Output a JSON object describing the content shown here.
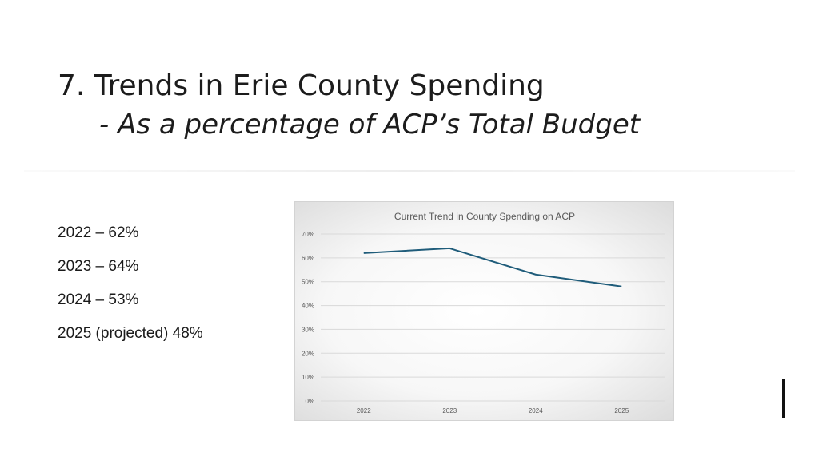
{
  "slide": {
    "title": "7. Trends in Erie County Spending",
    "subtitle": "- As a percentage of ACP’s Total Budget",
    "items": [
      "2022 – 62%",
      "2023 – 64%",
      "2024 – 53%",
      "2025 (projected) 48%"
    ]
  },
  "colors": {
    "line": "#1f5c7a",
    "grid": "#d9d9d9",
    "axis_text": "#595959"
  },
  "chart_data": {
    "type": "line",
    "title": "Current Trend in County Spending on ACP",
    "categories": [
      "2022",
      "2023",
      "2024",
      "2025"
    ],
    "series": [
      {
        "values": [
          62,
          64,
          53,
          48
        ]
      }
    ],
    "y_ticks": [
      "0%",
      "10%",
      "20%",
      "30%",
      "40%",
      "50%",
      "60%",
      "70%"
    ],
    "ylim": [
      0,
      70
    ],
    "grid": true,
    "legend": "none"
  }
}
